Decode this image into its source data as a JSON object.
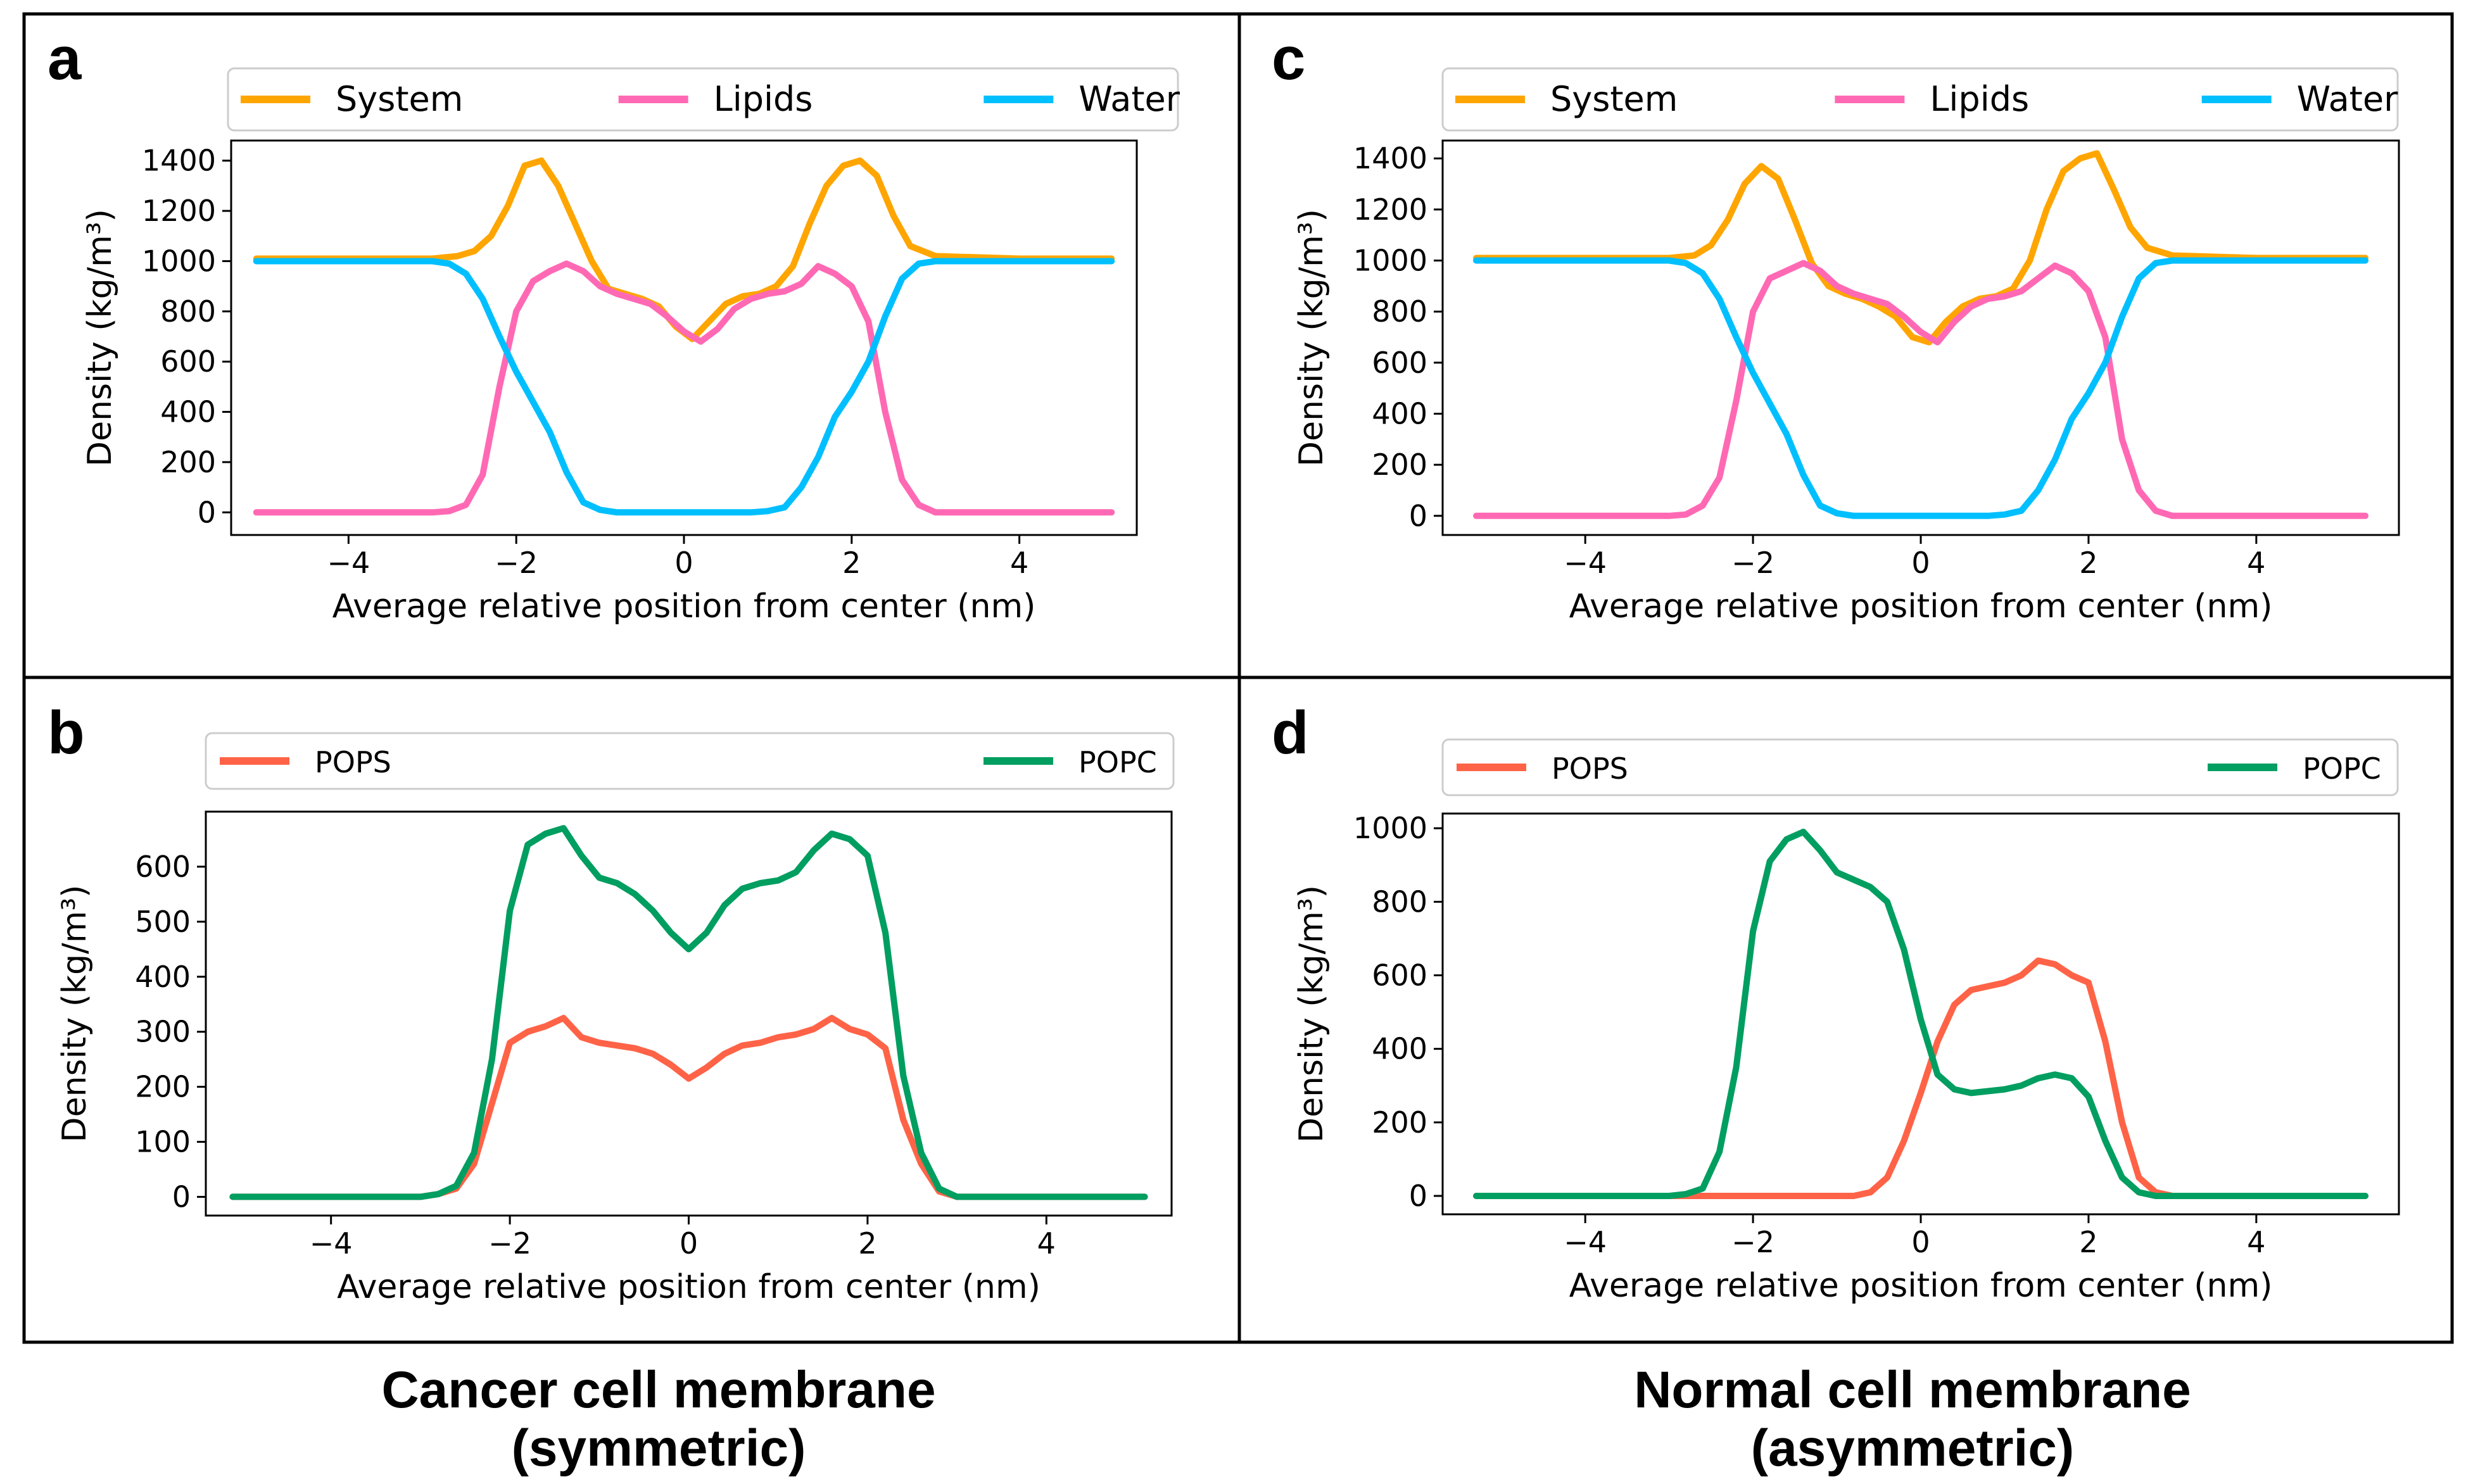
{
  "figure": {
    "caption_left": {
      "line1": "Cancer cell membrane",
      "line2": "(symmetric)"
    },
    "caption_right": {
      "line1": "Normal cell membrane",
      "line2": "(asymmetric)"
    }
  },
  "chart_data": [
    {
      "id": "a",
      "panel_label": "a",
      "type": "line",
      "xlabel": "Average relative position from center (nm)",
      "ylabel": "Density (kg/m³)",
      "xlim": [
        -5.4,
        5.4
      ],
      "ylim": [
        -90,
        1480
      ],
      "xticks": [
        -4,
        -2,
        0,
        2,
        4
      ],
      "xtick_labels": [
        "−4",
        "−2",
        "0",
        "2",
        "4"
      ],
      "yticks": [
        0,
        200,
        400,
        600,
        800,
        1000,
        1200,
        1400
      ],
      "legend_position": "top",
      "series": [
        {
          "name": "System",
          "color": "#ffa500",
          "x": [
            -5.1,
            -4,
            -3,
            -2.7,
            -2.5,
            -2.3,
            -2.1,
            -1.9,
            -1.7,
            -1.5,
            -1.3,
            -1.1,
            -0.9,
            -0.7,
            -0.5,
            -0.3,
            -0.1,
            0.1,
            0.3,
            0.5,
            0.7,
            0.9,
            1.1,
            1.3,
            1.5,
            1.7,
            1.9,
            2.1,
            2.3,
            2.5,
            2.7,
            3,
            4,
            5.1
          ],
          "y": [
            1010,
            1010,
            1010,
            1020,
            1040,
            1100,
            1220,
            1380,
            1400,
            1300,
            1150,
            1000,
            890,
            870,
            850,
            820,
            740,
            690,
            760,
            830,
            860,
            870,
            900,
            980,
            1150,
            1300,
            1380,
            1400,
            1340,
            1180,
            1060,
            1020,
            1010,
            1010
          ]
        },
        {
          "name": "Lipids",
          "color": "#ff69b4",
          "x": [
            -5.1,
            -4,
            -3,
            -2.8,
            -2.6,
            -2.4,
            -2.2,
            -2,
            -1.8,
            -1.6,
            -1.4,
            -1.2,
            -1,
            -0.8,
            -0.6,
            -0.4,
            -0.2,
            0,
            0.2,
            0.4,
            0.6,
            0.8,
            1,
            1.2,
            1.4,
            1.6,
            1.8,
            2,
            2.2,
            2.4,
            2.6,
            2.8,
            3,
            4,
            5.1
          ],
          "y": [
            0,
            0,
            0,
            5,
            30,
            150,
            500,
            800,
            920,
            960,
            990,
            960,
            900,
            870,
            850,
            830,
            780,
            720,
            680,
            730,
            810,
            850,
            870,
            880,
            910,
            980,
            950,
            900,
            760,
            400,
            130,
            30,
            0,
            0,
            0
          ]
        },
        {
          "name": "Water",
          "color": "#00bfff",
          "x": [
            -5.1,
            -4,
            -3,
            -2.8,
            -2.6,
            -2.4,
            -2.2,
            -2,
            -1.8,
            -1.6,
            -1.4,
            -1.2,
            -1,
            -0.8,
            -0.6,
            -0.4,
            0,
            0.4,
            0.8,
            1,
            1.2,
            1.4,
            1.6,
            1.8,
            2,
            2.2,
            2.4,
            2.6,
            2.8,
            3,
            4,
            5.1
          ],
          "y": [
            1000,
            1000,
            1000,
            990,
            950,
            850,
            700,
            560,
            440,
            320,
            160,
            40,
            10,
            0,
            0,
            0,
            0,
            0,
            0,
            5,
            20,
            100,
            220,
            380,
            480,
            600,
            780,
            930,
            990,
            1000,
            1000,
            1000
          ]
        }
      ]
    },
    {
      "id": "b",
      "panel_label": "b",
      "type": "line",
      "xlabel": "Average relative position from center (nm)",
      "ylabel": "Density (kg/m³)",
      "xlim": [
        -5.4,
        5.4
      ],
      "ylim": [
        -34,
        700
      ],
      "xticks": [
        -4,
        -2,
        0,
        2,
        4
      ],
      "xtick_labels": [
        "−4",
        "−2",
        "0",
        "2",
        "4"
      ],
      "yticks": [
        0,
        100,
        200,
        300,
        400,
        500,
        600
      ],
      "legend_position": "top",
      "series": [
        {
          "name": "POPS",
          "color": "#ff6347",
          "x": [
            -5.1,
            -4,
            -3,
            -2.8,
            -2.6,
            -2.4,
            -2.2,
            -2,
            -1.8,
            -1.6,
            -1.4,
            -1.2,
            -1,
            -0.8,
            -0.6,
            -0.4,
            -0.2,
            0,
            0.2,
            0.4,
            0.6,
            0.8,
            1,
            1.2,
            1.4,
            1.6,
            1.8,
            2,
            2.2,
            2.4,
            2.6,
            2.8,
            3,
            4,
            5.1
          ],
          "y": [
            0,
            0,
            0,
            5,
            15,
            60,
            170,
            280,
            300,
            310,
            325,
            290,
            280,
            275,
            270,
            260,
            240,
            215,
            235,
            260,
            275,
            280,
            290,
            295,
            305,
            325,
            305,
            295,
            270,
            140,
            60,
            10,
            0,
            0,
            0
          ]
        },
        {
          "name": "POPC",
          "color": "#009e60",
          "x": [
            -5.1,
            -4,
            -3,
            -2.8,
            -2.6,
            -2.4,
            -2.2,
            -2,
            -1.8,
            -1.6,
            -1.4,
            -1.2,
            -1,
            -0.8,
            -0.6,
            -0.4,
            -0.2,
            0,
            0.2,
            0.4,
            0.6,
            0.8,
            1,
            1.2,
            1.4,
            1.6,
            1.8,
            2,
            2.2,
            2.4,
            2.6,
            2.8,
            3,
            4,
            5.1
          ],
          "y": [
            0,
            0,
            0,
            5,
            20,
            80,
            250,
            520,
            640,
            660,
            670,
            620,
            580,
            570,
            550,
            520,
            480,
            450,
            480,
            530,
            560,
            570,
            575,
            590,
            630,
            660,
            650,
            620,
            480,
            220,
            80,
            15,
            0,
            0,
            0
          ]
        }
      ]
    },
    {
      "id": "c",
      "panel_label": "c",
      "type": "line",
      "xlabel": "Average relative position from center (nm)",
      "ylabel": "Density (kg/m³)",
      "xlim": [
        -5.7,
        5.7
      ],
      "ylim": [
        -75,
        1470
      ],
      "xticks": [
        -4,
        -2,
        0,
        2,
        4
      ],
      "xtick_labels": [
        "−4",
        "−2",
        "0",
        "2",
        "4"
      ],
      "yticks": [
        0,
        200,
        400,
        600,
        800,
        1000,
        1200,
        1400
      ],
      "legend_position": "top",
      "series": [
        {
          "name": "System",
          "color": "#ffa500",
          "x": [
            -5.3,
            -4,
            -3,
            -2.7,
            -2.5,
            -2.3,
            -2.1,
            -1.9,
            -1.7,
            -1.5,
            -1.3,
            -1.1,
            -0.9,
            -0.7,
            -0.5,
            -0.3,
            -0.1,
            0.1,
            0.3,
            0.5,
            0.7,
            0.9,
            1.1,
            1.3,
            1.5,
            1.7,
            1.9,
            2.1,
            2.3,
            2.5,
            2.7,
            3,
            4,
            5.3
          ],
          "y": [
            1010,
            1010,
            1010,
            1020,
            1060,
            1160,
            1300,
            1370,
            1320,
            1160,
            990,
            900,
            870,
            850,
            820,
            780,
            700,
            680,
            760,
            820,
            850,
            860,
            890,
            1000,
            1200,
            1350,
            1400,
            1420,
            1280,
            1130,
            1050,
            1020,
            1010,
            1010
          ]
        },
        {
          "name": "Lipids",
          "color": "#ff69b4",
          "x": [
            -5.3,
            -4,
            -3,
            -2.8,
            -2.6,
            -2.4,
            -2.2,
            -2,
            -1.8,
            -1.6,
            -1.4,
            -1.2,
            -1,
            -0.8,
            -0.6,
            -0.4,
            -0.2,
            0,
            0.2,
            0.4,
            0.6,
            0.8,
            1,
            1.2,
            1.4,
            1.6,
            1.8,
            2,
            2.2,
            2.4,
            2.6,
            2.8,
            3,
            4,
            5.3
          ],
          "y": [
            0,
            0,
            0,
            5,
            40,
            150,
            450,
            800,
            930,
            960,
            990,
            960,
            900,
            870,
            850,
            830,
            780,
            720,
            680,
            760,
            820,
            850,
            860,
            880,
            930,
            980,
            950,
            880,
            700,
            300,
            100,
            20,
            0,
            0,
            0
          ]
        },
        {
          "name": "Water",
          "color": "#00bfff",
          "x": [
            -5.3,
            -4,
            -3,
            -2.8,
            -2.6,
            -2.4,
            -2.2,
            -2,
            -1.8,
            -1.6,
            -1.4,
            -1.2,
            -1,
            -0.8,
            -0.6,
            -0.4,
            0,
            0.4,
            0.8,
            1,
            1.2,
            1.4,
            1.6,
            1.8,
            2,
            2.2,
            2.4,
            2.6,
            2.8,
            3,
            4,
            5.3
          ],
          "y": [
            1000,
            1000,
            1000,
            990,
            950,
            850,
            700,
            560,
            440,
            320,
            160,
            40,
            10,
            0,
            0,
            0,
            0,
            0,
            0,
            5,
            20,
            100,
            220,
            380,
            480,
            600,
            780,
            930,
            990,
            1000,
            1000,
            1000
          ]
        }
      ]
    },
    {
      "id": "d",
      "panel_label": "d",
      "type": "line",
      "xlabel": "Average relative position from center (nm)",
      "ylabel": "Density (kg/m³)",
      "xlim": [
        -5.7,
        5.7
      ],
      "ylim": [
        -50,
        1040
      ],
      "xticks": [
        -4,
        -2,
        0,
        2,
        4
      ],
      "xtick_labels": [
        "−4",
        "−2",
        "0",
        "2",
        "4"
      ],
      "yticks": [
        0,
        200,
        400,
        600,
        800,
        1000
      ],
      "legend_position": "top",
      "series": [
        {
          "name": "POPS",
          "color": "#ff6347",
          "x": [
            -5.3,
            -4,
            -3,
            -2,
            -1,
            -0.8,
            -0.6,
            -0.4,
            -0.2,
            0,
            0.2,
            0.4,
            0.6,
            0.8,
            1,
            1.2,
            1.4,
            1.6,
            1.8,
            2,
            2.2,
            2.4,
            2.6,
            2.8,
            3,
            4,
            5.3
          ],
          "y": [
            0,
            0,
            0,
            0,
            0,
            0,
            10,
            50,
            150,
            280,
            420,
            520,
            560,
            570,
            580,
            600,
            640,
            630,
            600,
            580,
            420,
            200,
            50,
            10,
            0,
            0,
            0
          ]
        },
        {
          "name": "POPC",
          "color": "#009e60",
          "x": [
            -5.3,
            -4,
            -3,
            -2.8,
            -2.6,
            -2.4,
            -2.2,
            -2,
            -1.8,
            -1.6,
            -1.4,
            -1.2,
            -1,
            -0.8,
            -0.6,
            -0.4,
            -0.2,
            0,
            0.2,
            0.4,
            0.6,
            0.8,
            1,
            1.2,
            1.4,
            1.6,
            1.8,
            2,
            2.2,
            2.4,
            2.6,
            2.8,
            3,
            4,
            5.3
          ],
          "y": [
            0,
            0,
            0,
            5,
            20,
            120,
            350,
            720,
            910,
            970,
            990,
            940,
            880,
            860,
            840,
            800,
            670,
            480,
            330,
            290,
            280,
            285,
            290,
            300,
            320,
            330,
            320,
            270,
            150,
            50,
            10,
            0,
            0,
            0,
            0
          ]
        }
      ]
    }
  ]
}
